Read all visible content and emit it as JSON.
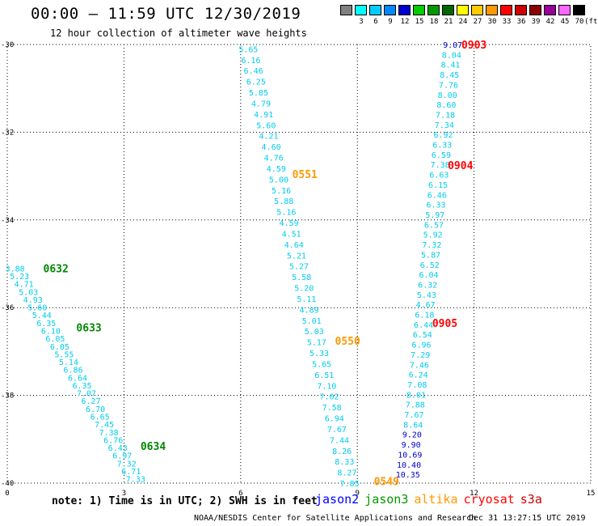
{
  "header": {
    "title": "00:00 – 11:59 UTC 12/30/2019",
    "subtitle": "12 hour collection of altimeter wave heights"
  },
  "footer": {
    "note": "note: 1) Time is in UTC; 2) SWH is in feet",
    "credit": "NOAA/NESDIS Center for Satellite Applications and Research",
    "stamp": "Dec 31 13:27:15 UTC 2019"
  },
  "colorbar": {
    "unit": "(ft)",
    "boxes": [
      {
        "label": "",
        "color": "#808080"
      },
      {
        "label": "3",
        "color": "#00ffff"
      },
      {
        "label": "6",
        "color": "#00ccff"
      },
      {
        "label": "9",
        "color": "#0088ff"
      },
      {
        "label": "12",
        "color": "#0000cc"
      },
      {
        "label": "15",
        "color": "#00cc00"
      },
      {
        "label": "18",
        "color": "#009900"
      },
      {
        "label": "21",
        "color": "#006600"
      },
      {
        "label": "24",
        "color": "#ffff00"
      },
      {
        "label": "27",
        "color": "#ffcc00"
      },
      {
        "label": "30",
        "color": "#ff9900"
      },
      {
        "label": "33",
        "color": "#ff0000"
      },
      {
        "label": "36",
        "color": "#cc0000"
      },
      {
        "label": "39",
        "color": "#880000"
      },
      {
        "label": "42",
        "color": "#990099"
      },
      {
        "label": "45",
        "color": "#ff66ff"
      },
      {
        "label": "70",
        "color": "#000000"
      }
    ]
  },
  "chart_data": {
    "type": "scatter",
    "xlim": [
      0,
      15
    ],
    "ylim": [
      -40,
      -30
    ],
    "x_ticks": [
      0,
      3,
      6,
      9,
      12,
      15
    ],
    "y_ticks": [
      -30,
      -32,
      -34,
      -36,
      -38,
      -40
    ],
    "x_tick_labels": [
      "0",
      "3",
      "6",
      "9",
      "12",
      "15"
    ],
    "y_tick_labels": [
      "-30",
      "-32",
      "-34",
      "-36",
      "-38",
      "-40"
    ],
    "grid": true,
    "satellites": [
      {
        "name": "jason2",
        "color": "#0000ff"
      },
      {
        "name": "jason3",
        "color": "#009900"
      },
      {
        "name": "altika",
        "color": "#ff9900"
      },
      {
        "name": "cryosat",
        "color": "#ff0000"
      },
      {
        "name": "s3a",
        "color": "#cc0000"
      }
    ],
    "tracks": [
      {
        "name": "jason3 pass",
        "x_start": 0.2,
        "x_end": 3.3,
        "y_start": -35.1,
        "y_end": -39.9,
        "values": [
          "3.88",
          "5.23",
          "4.71",
          "5.03",
          "4.93",
          "5.60",
          "5.44",
          "6.35",
          "6.10",
          "6.05",
          "6.05",
          "5.55",
          "5.14",
          "6.86",
          "6.64",
          "6.35",
          "7.07",
          "6.27",
          "6.70",
          "6.65",
          "7.45",
          "7.38",
          "6.76",
          "6.43",
          "6.97",
          "7.32",
          "6.71",
          "7.33"
        ]
      },
      {
        "name": "altika pass east",
        "x_start": 6.2,
        "x_end": 8.8,
        "y_start": -30.1,
        "y_end": -40.0,
        "values": [
          "5.65",
          "6.16",
          "6.46",
          "6.25",
          "5.85",
          "4.79",
          "4.91",
          "5.60",
          "4.21",
          "4.60",
          "4.76",
          "4.59",
          "5.00",
          "5.16",
          "5.88",
          "5.16",
          "4.59",
          "4.51",
          "4.64",
          "5.21",
          "5.27",
          "5.58",
          "5.20",
          "5.11",
          "4.89",
          "5.01",
          "5.03",
          "5.17",
          "5.33",
          "5.65",
          "6.51",
          "7.10",
          "7.02",
          "7.58",
          "6.94",
          "7.67",
          "7.44",
          "8.26",
          "8.33",
          "8.27",
          "7.85"
        ]
      },
      {
        "name": "jason2 pass",
        "x_start": 11.45,
        "x_end": 10.3,
        "y_start": -30.0,
        "y_end": -39.8,
        "values": [
          "9.07",
          "8.04",
          "8.41",
          "8.45",
          "7.76",
          "8.00",
          "8.60",
          "7.18",
          "7.34",
          "6.92",
          "6.33",
          "6.59",
          "7.38",
          "6.63",
          "6.15",
          "6.46",
          "6.33",
          "5.97",
          "6.57",
          "5.92",
          "7.32",
          "5.87",
          "6.52",
          "6.04",
          "6.32",
          "5.43",
          "4.67",
          "6.18",
          "6.44",
          "6.54",
          "6.96",
          "7.29",
          "7.46",
          "6.24",
          "7.08",
          "8.01",
          "7.88",
          "7.67",
          "8.64",
          "9.20",
          "9.90",
          "10.69",
          "10.40",
          "10.35"
        ]
      }
    ],
    "time_labels": [
      {
        "text": "0632",
        "x": 1.25,
        "y": -35.1,
        "color": "#008800"
      },
      {
        "text": "0633",
        "x": 2.1,
        "y": -36.45,
        "color": "#008800"
      },
      {
        "text": "0634",
        "x": 3.75,
        "y": -39.15,
        "color": "#008800"
      },
      {
        "text": "0551",
        "x": 7.65,
        "y": -32.95,
        "color": "#ff9900"
      },
      {
        "text": "0550",
        "x": 8.75,
        "y": -36.75,
        "color": "#ff9900"
      },
      {
        "text": "0549",
        "x": 9.75,
        "y": -39.95,
        "color": "#ff9900"
      },
      {
        "text": "0903",
        "x": 12.0,
        "y": -30.0,
        "color": "#ff0000"
      },
      {
        "text": "0904",
        "x": 11.65,
        "y": -32.75,
        "color": "#ff0000"
      },
      {
        "text": "0905",
        "x": 11.25,
        "y": -36.35,
        "color": "#ff0000"
      }
    ]
  }
}
